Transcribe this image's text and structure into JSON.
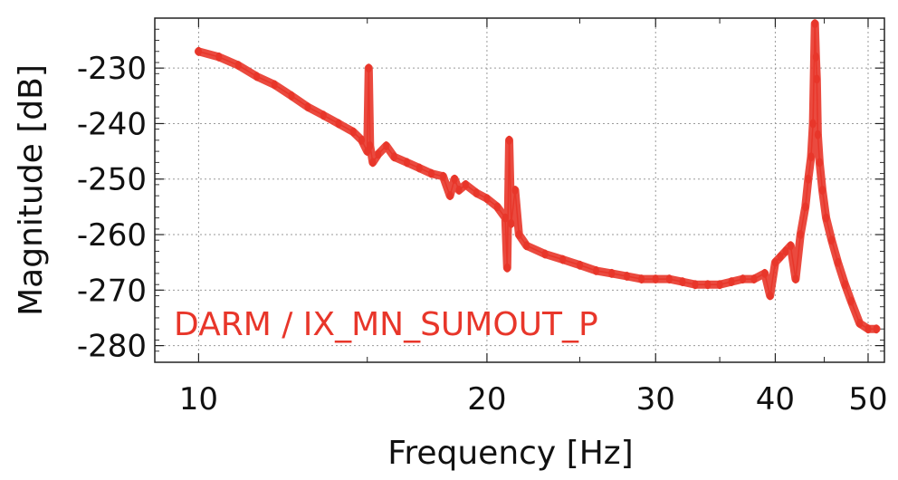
{
  "chart_data": {
    "type": "line",
    "title": "",
    "xlabel": "Frequency [Hz]",
    "ylabel": "Magnitude [dB]",
    "xscale": "log",
    "xlim": [
      9,
      52
    ],
    "ylim": [
      -283,
      -221
    ],
    "grid": true,
    "x_major_ticks": [
      10,
      20,
      30,
      40,
      50
    ],
    "x_tick_labels": [
      "10",
      "20",
      "30",
      "40",
      "50"
    ],
    "x_minor_ticks": [
      15,
      25,
      35,
      45
    ],
    "y_ticks": [
      -230,
      -240,
      -250,
      -260,
      -270,
      -280
    ],
    "y_tick_labels": [
      "-230",
      "-240",
      "-250",
      "-260",
      "-270",
      "-280"
    ],
    "annotations": [
      {
        "text": "DARM / IX_MN_SUMOUT_P",
        "color": "#e8362a",
        "position": "bottom-left"
      }
    ],
    "colors": {
      "series": "#e8362a",
      "grid": "#9a9a9a",
      "frame": "#222222"
    },
    "series": [
      {
        "x": [
          10,
          10.5,
          11,
          11.5,
          12,
          12.5,
          13,
          13.5,
          14,
          14.5,
          14.8,
          15.0,
          15.05,
          15.1,
          15.2,
          15.4,
          15.7,
          16,
          16.5,
          17,
          17.5,
          18,
          18.3,
          18.5,
          18.7,
          19,
          19.5,
          20,
          20.5,
          20.9,
          21.0,
          21.1,
          21.2,
          21.4,
          21.6,
          22,
          23,
          24,
          25,
          26,
          27,
          28,
          29,
          30,
          31,
          32,
          33,
          34,
          35,
          36,
          37,
          38,
          39,
          39.5,
          40,
          40.5,
          41,
          41.5,
          42,
          42.5,
          43,
          43.3,
          43.6,
          43.8,
          44.0,
          44.1,
          44.2,
          44.3,
          44.5,
          44.8,
          45.2,
          45.8,
          46.5,
          47.3,
          48,
          49,
          50,
          51
        ],
        "y": [
          -227,
          -228,
          -229.5,
          -231.5,
          -233,
          -235,
          -237,
          -238.5,
          -240,
          -241.5,
          -243,
          -245,
          -230,
          -244,
          -247,
          -245.5,
          -244,
          -246,
          -247,
          -248,
          -249,
          -249.5,
          -253,
          -250,
          -252,
          -251,
          -252.5,
          -253.5,
          -255,
          -257,
          -266,
          -243,
          -258,
          -252,
          -260,
          -262,
          -263.5,
          -264.5,
          -265.5,
          -266.5,
          -267,
          -267.5,
          -268,
          -268,
          -268,
          -268.5,
          -269,
          -269,
          -269,
          -268.5,
          -268,
          -268,
          -267,
          -271,
          -265,
          -264,
          -263,
          -262,
          -268,
          -260,
          -255,
          -250,
          -246,
          -240,
          -222,
          -228,
          -232,
          -242,
          -247,
          -252,
          -257,
          -261,
          -265,
          -269,
          -272,
          -276,
          -277,
          -277
        ]
      }
    ]
  }
}
